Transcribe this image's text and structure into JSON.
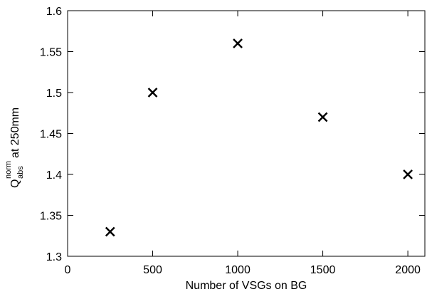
{
  "chart_data": {
    "type": "scatter",
    "x_label": "Number of VSGs on BG",
    "y_label": {
      "main": "Q",
      "sub": "abs",
      "sup": "norm",
      "rest": "at 250mm"
    },
    "x": [
      250,
      500,
      1000,
      1500,
      2000
    ],
    "values": [
      1.33,
      1.5,
      1.56,
      1.47,
      1.4
    ],
    "color": "#000000",
    "xlim": [
      0,
      2100
    ],
    "xticks": [
      0,
      500,
      1000,
      1500,
      2000
    ],
    "ylim": [
      1.3,
      1.6
    ],
    "yticks": [
      1.3,
      1.35,
      1.4,
      1.45,
      1.5,
      1.55,
      1.6
    ],
    "grid": false
  }
}
